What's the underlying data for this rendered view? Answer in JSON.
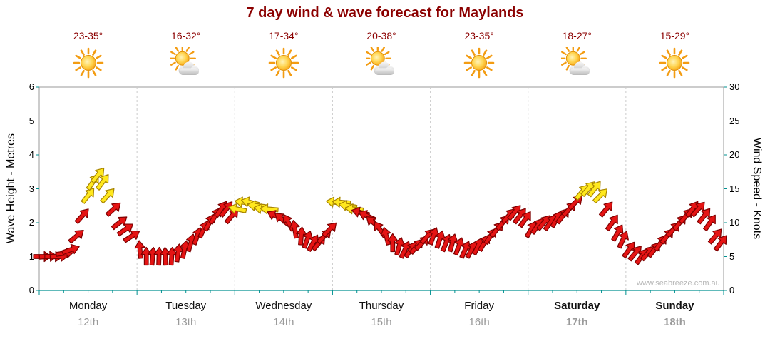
{
  "title": "7 day wind & wave forecast for Maylands",
  "watermark": "www.seabreeze.com.au",
  "left_axis": {
    "label": "Wave Height - Metres",
    "ticks": [
      0,
      1,
      2,
      3,
      4,
      5,
      6
    ]
  },
  "right_axis": {
    "label": "Wind Speed - Knots",
    "ticks": [
      0,
      5,
      10,
      15,
      20,
      25,
      30
    ]
  },
  "days": [
    {
      "name": "Monday",
      "date": "12th",
      "temp": "23-35°",
      "icon": "sunny",
      "weekend": false
    },
    {
      "name": "Tuesday",
      "date": "13th",
      "temp": "16-32°",
      "icon": "partly",
      "weekend": false
    },
    {
      "name": "Wednesday",
      "date": "14th",
      "temp": "17-34°",
      "icon": "sunny",
      "weekend": false
    },
    {
      "name": "Thursday",
      "date": "15th",
      "temp": "20-38°",
      "icon": "partly",
      "weekend": false
    },
    {
      "name": "Friday",
      "date": "16th",
      "temp": "23-35°",
      "icon": "sunny",
      "weekend": false
    },
    {
      "name": "Saturday",
      "date": "17th",
      "temp": "18-27°",
      "icon": "partly",
      "weekend": true
    },
    {
      "name": "Sunday",
      "date": "18th",
      "temp": "15-29°",
      "icon": "sunny",
      "weekend": true
    }
  ],
  "chart_data": {
    "type": "wind-arrows-timeseries",
    "title": "7 day wind & wave forecast for Maylands",
    "ylabel_left": "Wave Height - Metres",
    "ylabel_right": "Wind Speed - Knots",
    "metres_range": [
      0,
      6
    ],
    "knots_range": [
      0,
      30
    ],
    "grid": "day-boundaries-dashed",
    "colors": {
      "normal_fill": "#e51414",
      "normal_outline": "#7d0000",
      "strong_fill": "#ffe81e",
      "strong_outline": "#a88500",
      "axis_tick": "#009090",
      "frame": "#9a9a9a",
      "separator": "#cccccc"
    },
    "arrow_format": [
      "day_index",
      "fraction_of_day",
      "wind_knots",
      "direction_deg_cw_from_east",
      "strength(n=normal,s=strong)"
    ],
    "arrows": [
      [
        0,
        0.03,
        5,
        0,
        "n"
      ],
      [
        0,
        0.09,
        5,
        -4,
        "n"
      ],
      [
        0,
        0.145,
        5,
        2,
        "n"
      ],
      [
        0,
        0.2,
        5,
        -3,
        "n"
      ],
      [
        0,
        0.26,
        5.5,
        -8,
        "n"
      ],
      [
        0,
        0.32,
        6,
        -20,
        "n"
      ],
      [
        0,
        0.38,
        8,
        -40,
        "n"
      ],
      [
        0,
        0.44,
        11,
        -48,
        "n"
      ],
      [
        0,
        0.5,
        14,
        -52,
        "s"
      ],
      [
        0,
        0.55,
        16,
        -55,
        "s"
      ],
      [
        0,
        0.6,
        17,
        -50,
        "s"
      ],
      [
        0,
        0.65,
        16,
        -53,
        "s"
      ],
      [
        0,
        0.7,
        14,
        -47,
        "s"
      ],
      [
        0,
        0.76,
        12,
        -42,
        "n"
      ],
      [
        0,
        0.82,
        10,
        -38,
        "n"
      ],
      [
        0,
        0.88,
        9,
        -35,
        "n"
      ],
      [
        0,
        0.945,
        8,
        -33,
        "n"
      ],
      [
        1,
        0.03,
        6,
        265,
        "n"
      ],
      [
        1,
        0.095,
        5,
        270,
        "n"
      ],
      [
        1,
        0.16,
        5,
        275,
        "n"
      ],
      [
        1,
        0.225,
        5,
        272,
        "n"
      ],
      [
        1,
        0.29,
        5,
        268,
        "n"
      ],
      [
        1,
        0.355,
        5,
        274,
        "n"
      ],
      [
        1,
        0.42,
        5.5,
        278,
        "n"
      ],
      [
        1,
        0.485,
        6,
        282,
        "n"
      ],
      [
        1,
        0.55,
        7,
        286,
        "n"
      ],
      [
        1,
        0.615,
        8,
        290,
        "n"
      ],
      [
        1,
        0.68,
        9,
        295,
        "n"
      ],
      [
        1,
        0.74,
        10,
        298,
        "n"
      ],
      [
        1,
        0.8,
        11,
        302,
        "n"
      ],
      [
        1,
        0.86,
        12,
        305,
        "n"
      ],
      [
        1,
        0.915,
        12,
        308,
        "n"
      ],
      [
        1,
        0.97,
        11,
        310,
        "n"
      ],
      [
        2,
        0.03,
        12,
        192,
        "s"
      ],
      [
        2,
        0.095,
        13,
        188,
        "s"
      ],
      [
        2,
        0.16,
        13,
        194,
        "s"
      ],
      [
        2,
        0.225,
        12.5,
        186,
        "s"
      ],
      [
        2,
        0.29,
        12,
        190,
        "s"
      ],
      [
        2,
        0.355,
        12,
        185,
        "s"
      ],
      [
        2,
        0.42,
        11,
        205,
        "n"
      ],
      [
        2,
        0.485,
        10.5,
        220,
        "n"
      ],
      [
        2,
        0.55,
        10,
        240,
        "n"
      ],
      [
        2,
        0.615,
        9,
        260,
        "n"
      ],
      [
        2,
        0.68,
        8,
        275,
        "n"
      ],
      [
        2,
        0.74,
        7.5,
        290,
        "n"
      ],
      [
        2,
        0.8,
        7,
        300,
        "n"
      ],
      [
        2,
        0.86,
        7,
        310,
        "n"
      ],
      [
        2,
        0.915,
        8,
        315,
        "n"
      ],
      [
        2,
        0.97,
        9,
        315,
        "n"
      ],
      [
        3,
        0.03,
        13,
        188,
        "s"
      ],
      [
        3,
        0.095,
        13,
        184,
        "s"
      ],
      [
        3,
        0.16,
        12.5,
        190,
        "s"
      ],
      [
        3,
        0.225,
        12,
        186,
        "s"
      ],
      [
        3,
        0.29,
        11.5,
        195,
        "n"
      ],
      [
        3,
        0.355,
        11,
        205,
        "n"
      ],
      [
        3,
        0.42,
        10,
        220,
        "n"
      ],
      [
        3,
        0.485,
        9,
        235,
        "n"
      ],
      [
        3,
        0.55,
        8,
        255,
        "n"
      ],
      [
        3,
        0.615,
        7,
        270,
        "n"
      ],
      [
        3,
        0.68,
        6.5,
        285,
        "n"
      ],
      [
        3,
        0.74,
        6,
        295,
        "n"
      ],
      [
        3,
        0.8,
        6,
        305,
        "n"
      ],
      [
        3,
        0.86,
        6.5,
        310,
        "n"
      ],
      [
        3,
        0.915,
        7,
        315,
        "n"
      ],
      [
        3,
        0.97,
        8,
        312,
        "n"
      ],
      [
        4,
        0.03,
        8,
        290,
        "n"
      ],
      [
        4,
        0.095,
        7.5,
        288,
        "n"
      ],
      [
        4,
        0.16,
        7,
        292,
        "n"
      ],
      [
        4,
        0.225,
        7,
        286,
        "n"
      ],
      [
        4,
        0.29,
        6.5,
        290,
        "n"
      ],
      [
        4,
        0.355,
        6,
        294,
        "n"
      ],
      [
        4,
        0.42,
        6,
        298,
        "n"
      ],
      [
        4,
        0.485,
        6.5,
        295,
        "n"
      ],
      [
        4,
        0.55,
        7,
        300,
        "n"
      ],
      [
        4,
        0.615,
        8,
        305,
        "n"
      ],
      [
        4,
        0.68,
        9,
        308,
        "n"
      ],
      [
        4,
        0.74,
        10,
        310,
        "n"
      ],
      [
        4,
        0.8,
        11,
        312,
        "n"
      ],
      [
        4,
        0.86,
        11.5,
        310,
        "n"
      ],
      [
        4,
        0.915,
        11,
        308,
        "n"
      ],
      [
        4,
        0.97,
        10.5,
        305,
        "n"
      ],
      [
        5,
        0.03,
        9,
        300,
        "n"
      ],
      [
        5,
        0.095,
        9.5,
        305,
        "n"
      ],
      [
        5,
        0.16,
        10,
        310,
        "n"
      ],
      [
        5,
        0.225,
        10,
        305,
        "n"
      ],
      [
        5,
        0.29,
        10.5,
        300,
        "n"
      ],
      [
        5,
        0.355,
        11,
        308,
        "n"
      ],
      [
        5,
        0.42,
        12,
        312,
        "n"
      ],
      [
        5,
        0.485,
        13,
        315,
        "n"
      ],
      [
        5,
        0.55,
        14.5,
        310,
        "s"
      ],
      [
        5,
        0.615,
        15,
        312,
        "s"
      ],
      [
        5,
        0.68,
        15,
        308,
        "s"
      ],
      [
        5,
        0.74,
        14,
        315,
        "s"
      ],
      [
        5,
        0.8,
        12,
        310,
        "n"
      ],
      [
        5,
        0.86,
        10,
        305,
        "n"
      ],
      [
        5,
        0.915,
        8.5,
        300,
        "n"
      ],
      [
        5,
        0.97,
        7.5,
        295,
        "n"
      ],
      [
        6,
        0.03,
        6,
        305,
        "n"
      ],
      [
        6,
        0.095,
        5.5,
        310,
        "n"
      ],
      [
        6,
        0.16,
        5,
        306,
        "n"
      ],
      [
        6,
        0.225,
        5.5,
        312,
        "n"
      ],
      [
        6,
        0.29,
        6,
        308,
        "n"
      ],
      [
        6,
        0.355,
        7,
        305,
        "n"
      ],
      [
        6,
        0.42,
        8,
        310,
        "n"
      ],
      [
        6,
        0.485,
        9,
        312,
        "n"
      ],
      [
        6,
        0.55,
        10,
        308,
        "n"
      ],
      [
        6,
        0.615,
        11,
        310,
        "n"
      ],
      [
        6,
        0.68,
        12,
        306,
        "n"
      ],
      [
        6,
        0.74,
        12,
        312,
        "n"
      ],
      [
        6,
        0.8,
        11,
        308,
        "n"
      ],
      [
        6,
        0.86,
        10,
        305,
        "n"
      ],
      [
        6,
        0.915,
        8,
        310,
        "n"
      ],
      [
        6,
        0.97,
        7,
        307,
        "n"
      ]
    ]
  }
}
